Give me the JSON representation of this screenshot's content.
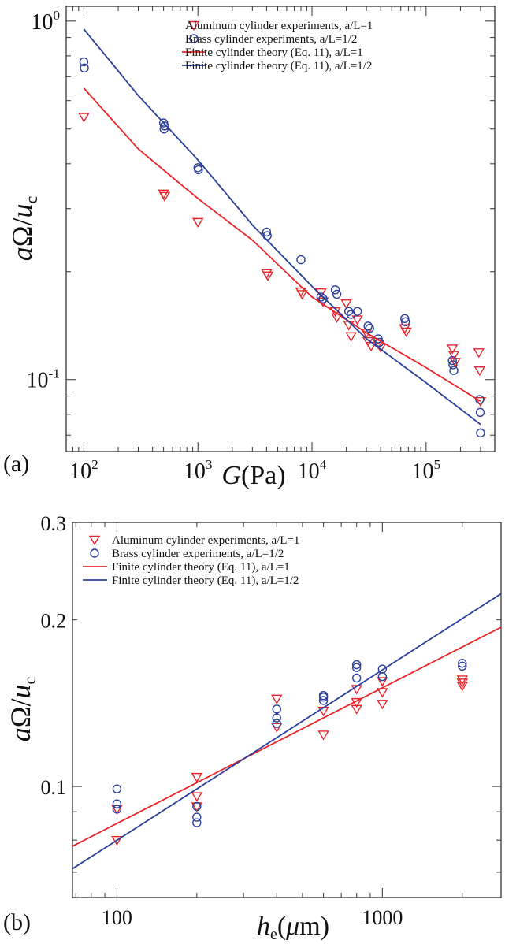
{
  "colors": {
    "aluminum": "#e8262a",
    "brass": "#2b3f9a",
    "theory_a1": "#e8262a",
    "theory_a05": "#2b3f9a",
    "axis": "#333333"
  },
  "chart_data": [
    {
      "panel_label": "(a)",
      "type": "scatter",
      "xscale": "log",
      "yscale": "log",
      "xlim": [
        70,
        400000
      ],
      "ylim": [
        0.063,
        1.1
      ],
      "xlabel_italic": "G",
      "xlabel_rest": "(Pa)",
      "ylabel_italic_main": "a",
      "ylabel_omega": "Ω",
      "ylabel_slash": "/",
      "ylabel_u": "u",
      "ylabel_sub": "c",
      "x_ticks": [
        {
          "value": 100,
          "base": "10",
          "exp": "2"
        },
        {
          "value": 1000,
          "base": "10",
          "exp": "3"
        },
        {
          "value": 10000,
          "base": "10",
          "exp": "4"
        },
        {
          "value": 100000,
          "base": "10",
          "exp": "5"
        }
      ],
      "y_ticks": [
        {
          "value": 1,
          "base": "10",
          "exp": "0"
        },
        {
          "value": 0.1,
          "base": "10",
          "exp": "-1"
        }
      ],
      "legend_position": "top-right",
      "legend": [
        {
          "label": "Aluminum cylinder experiments, a/L=1",
          "marker": "triangle-down",
          "color": "#e8262a"
        },
        {
          "label": "Brass cylinder experiments, a/L=1/2",
          "marker": "circle",
          "color": "#2b3f9a"
        },
        {
          "label": "Finite cylinder theory  (Eq. 11), a/L=1",
          "marker": "line",
          "color": "#e8262a"
        },
        {
          "label": "Finite cylinder theory  (Eq. 11), a/L=1/2",
          "marker": "line",
          "color": "#2b3f9a"
        }
      ],
      "series": [
        {
          "name": "Aluminum cylinder experiments, a/L=1",
          "kind": "triangle-down",
          "color": "#e8262a",
          "points": [
            [
              100,
              0.54
            ],
            [
              500,
              0.33
            ],
            [
              510,
              0.325
            ],
            [
              1000,
              0.275
            ],
            [
              4000,
              0.198
            ],
            [
              4100,
              0.195
            ],
            [
              8000,
              0.176
            ],
            [
              8200,
              0.173
            ],
            [
              12000,
              0.175
            ],
            [
              12500,
              0.165
            ],
            [
              16000,
              0.155
            ],
            [
              16500,
              0.149
            ],
            [
              20000,
              0.163
            ],
            [
              21000,
              0.142
            ],
            [
              22000,
              0.132
            ],
            [
              25000,
              0.147
            ],
            [
              30000,
              0.135
            ],
            [
              31000,
              0.128
            ],
            [
              33000,
              0.124
            ],
            [
              38000,
              0.126
            ],
            [
              40000,
              0.123
            ],
            [
              65000,
              0.139
            ],
            [
              67000,
              0.136
            ],
            [
              170000,
              0.122
            ],
            [
              175000,
              0.117
            ],
            [
              180000,
              0.112
            ],
            [
              290000,
              0.119
            ],
            [
              295000,
              0.106
            ],
            [
              300000,
              0.087
            ]
          ]
        },
        {
          "name": "Brass cylinder experiments, a/L=1/2",
          "kind": "circle",
          "color": "#2b3f9a",
          "points": [
            [
              100,
              0.77
            ],
            [
              101,
              0.74
            ],
            [
              500,
              0.52
            ],
            [
              505,
              0.5
            ],
            [
              510,
              0.51
            ],
            [
              1000,
              0.39
            ],
            [
              1010,
              0.385
            ],
            [
              4000,
              0.258
            ],
            [
              4050,
              0.252
            ],
            [
              8000,
              0.216
            ],
            [
              12000,
              0.17
            ],
            [
              12500,
              0.168
            ],
            [
              16000,
              0.178
            ],
            [
              16500,
              0.173
            ],
            [
              21000,
              0.155
            ],
            [
              22000,
              0.152
            ],
            [
              25000,
              0.155
            ],
            [
              31000,
              0.141
            ],
            [
              32000,
              0.139
            ],
            [
              38000,
              0.13
            ],
            [
              39000,
              0.127
            ],
            [
              65000,
              0.148
            ],
            [
              66000,
              0.145
            ],
            [
              170000,
              0.113
            ],
            [
              172000,
              0.11
            ],
            [
              175000,
              0.106
            ],
            [
              295000,
              0.088
            ],
            [
              298000,
              0.081
            ],
            [
              300000,
              0.071
            ]
          ]
        },
        {
          "name": "Finite cylinder theory  (Eq. 11), a/L=1",
          "kind": "line",
          "color": "#e8262a",
          "points": [
            [
              100,
              0.65
            ],
            [
              300,
              0.44
            ],
            [
              1000,
              0.32
            ],
            [
              3000,
              0.245
            ],
            [
              10000,
              0.17
            ],
            [
              30000,
              0.135
            ],
            [
              100000,
              0.108
            ],
            [
              300000,
              0.087
            ]
          ]
        },
        {
          "name": "Finite cylinder theory  (Eq. 11), a/L=1/2",
          "kind": "line",
          "color": "#2b3f9a",
          "points": [
            [
              100,
              0.95
            ],
            [
              300,
              0.62
            ],
            [
              1000,
              0.41
            ],
            [
              3000,
              0.27
            ],
            [
              10000,
              0.182
            ],
            [
              30000,
              0.13
            ],
            [
              100000,
              0.098
            ],
            [
              300000,
              0.075
            ]
          ]
        }
      ]
    },
    {
      "panel_label": "(b)",
      "type": "scatter",
      "xscale": "log",
      "yscale": "log",
      "xlim": [
        68,
        2800
      ],
      "ylim": [
        0.063,
        0.3
      ],
      "xlabel_italic": "h",
      "xlabel_sub": "e",
      "xlabel_rest_open": "(",
      "xlabel_mu": "μ",
      "xlabel_rest_close": "m)",
      "ylabel_italic_main": "a",
      "ylabel_omega": "Ω",
      "ylabel_slash": "/",
      "ylabel_u": "u",
      "ylabel_sub": "c",
      "x_ticks": [
        {
          "value": 100,
          "label": "100"
        },
        {
          "value": 1000,
          "label": "1000"
        }
      ],
      "y_ticks": [
        {
          "value": 0.3,
          "label": "0.3"
        },
        {
          "value": 0.2,
          "label": "0.2"
        },
        {
          "value": 0.1,
          "label": "0.1"
        }
      ],
      "legend_position": "top-left",
      "legend": [
        {
          "label": "Aluminum cylinder experiments, a/L=1",
          "marker": "triangle-down",
          "color": "#e8262a"
        },
        {
          "label": "Brass cylinder experiments, a/L=1/2",
          "marker": "circle",
          "color": "#2b3f9a"
        },
        {
          "label": "Finite cylinder theory (Eq. 11), a/L=1",
          "marker": "line",
          "color": "#e8262a"
        },
        {
          "label": "Finite cylinder theory (Eq. 11), a/L=1/2",
          "marker": "line",
          "color": "#2b3f9a"
        }
      ],
      "series": [
        {
          "name": "Aluminum cylinder experiments, a/L=1",
          "kind": "triangle-down",
          "color": "#e8262a",
          "points": [
            [
              100,
              0.091
            ],
            [
              100,
              0.08
            ],
            [
              200,
              0.104
            ],
            [
              200,
              0.096
            ],
            [
              200,
              0.092
            ],
            [
              400,
              0.144
            ],
            [
              400,
              0.128
            ],
            [
              600,
              0.137
            ],
            [
              600,
              0.124
            ],
            [
              800,
              0.15
            ],
            [
              800,
              0.142
            ],
            [
              800,
              0.138
            ],
            [
              1000,
              0.155
            ],
            [
              1000,
              0.148
            ],
            [
              1000,
              0.141
            ],
            [
              2000,
              0.156
            ],
            [
              2000,
              0.154
            ],
            [
              2000,
              0.152
            ]
          ]
        },
        {
          "name": "Brass cylinder experiments, a/L=1/2",
          "kind": "circle",
          "color": "#2b3f9a",
          "points": [
            [
              100,
              0.099
            ],
            [
              100,
              0.093
            ],
            [
              100,
              0.091
            ],
            [
              200,
              0.092
            ],
            [
              200,
              0.088
            ],
            [
              200,
              0.086
            ],
            [
              400,
              0.138
            ],
            [
              400,
              0.133
            ],
            [
              400,
              0.13
            ],
            [
              600,
              0.146
            ],
            [
              600,
              0.145
            ],
            [
              600,
              0.143
            ],
            [
              800,
              0.166
            ],
            [
              800,
              0.164
            ],
            [
              800,
              0.157
            ],
            [
              1000,
              0.163
            ],
            [
              1000,
              0.158
            ],
            [
              2000,
              0.167
            ],
            [
              2000,
              0.165
            ]
          ]
        },
        {
          "name": "Finite cylinder theory (Eq. 11), a/L=1",
          "kind": "line",
          "color": "#e8262a",
          "points": [
            [
              68,
              0.078
            ],
            [
              2800,
              0.194
            ]
          ]
        },
        {
          "name": "Finite cylinder theory (Eq. 11), a/L=1/2",
          "kind": "line",
          "color": "#2b3f9a",
          "points": [
            [
              68,
              0.071
            ],
            [
              2800,
              0.223
            ]
          ]
        }
      ]
    }
  ]
}
